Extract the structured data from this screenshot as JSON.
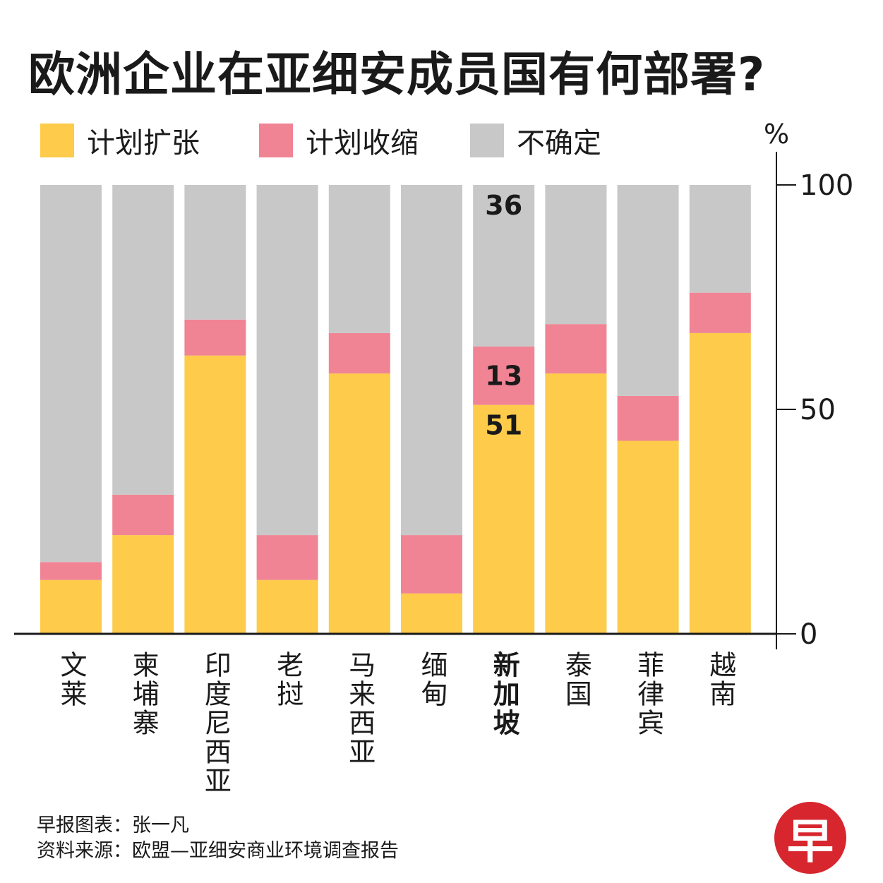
{
  "chart_data": {
    "type": "bar",
    "stacked": true,
    "title": "欧洲企业在亚细安成员国有何部署?",
    "ylabel": "%",
    "ylim": [
      0,
      100
    ],
    "yticks": [
      0,
      50,
      100
    ],
    "categories": [
      "文莱",
      "柬埔寨",
      "印度尼西亚",
      "老挝",
      "马来西亚",
      "缅甸",
      "新加坡",
      "泰国",
      "菲律宾",
      "越南"
    ],
    "highlight": "新加坡",
    "series": [
      {
        "name": "计划扩张",
        "color": "#fecb4a",
        "values": [
          12,
          22,
          62,
          12,
          58,
          9,
          51,
          58,
          43,
          67
        ]
      },
      {
        "name": "计划收缩",
        "color": "#f08494",
        "values": [
          4,
          9,
          8,
          10,
          9,
          13,
          13,
          11,
          10,
          9
        ]
      },
      {
        "name": "不确定",
        "color": "#c8c8c8",
        "values": [
          84,
          69,
          30,
          78,
          33,
          78,
          36,
          31,
          47,
          24
        ]
      }
    ],
    "data_labels": [
      {
        "category": "新加坡",
        "series": "不确定",
        "text": "36"
      },
      {
        "category": "新加坡",
        "series": "计划收缩",
        "text": "13"
      },
      {
        "category": "新加坡",
        "series": "计划扩张",
        "text": "51"
      }
    ],
    "legend": "top"
  },
  "footer": {
    "credit": "早报图表：张一凡",
    "source": "资料来源：欧盟—亚细安商业环境调查报告"
  },
  "logo_text": "早"
}
